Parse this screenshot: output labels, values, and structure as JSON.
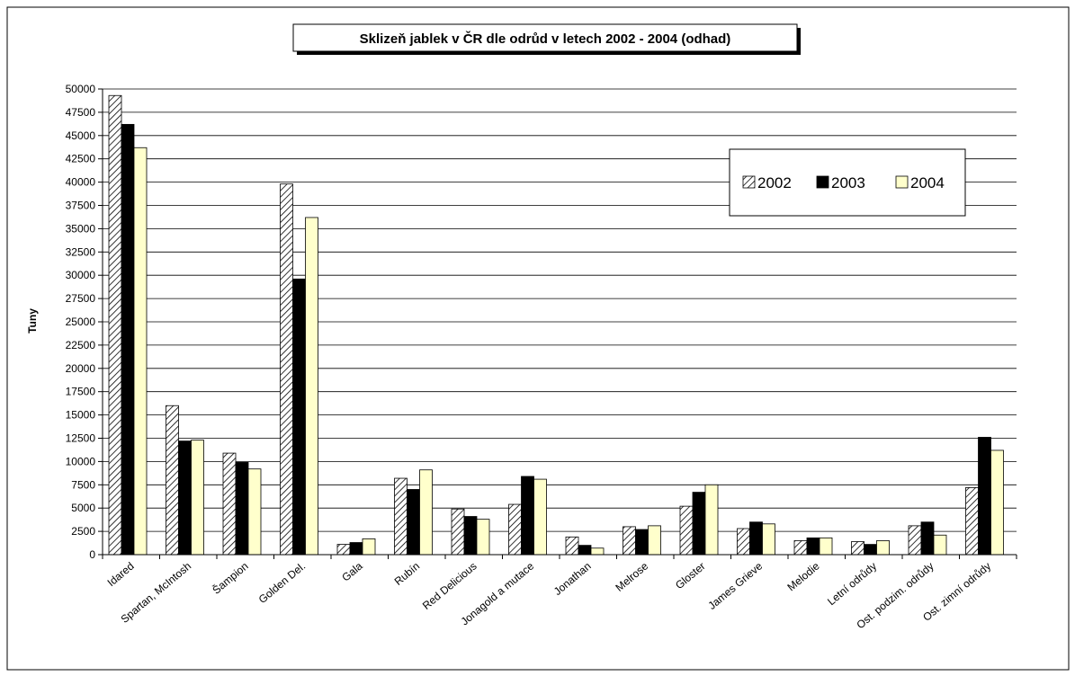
{
  "chart_data": {
    "type": "bar",
    "title": "Sklizeň jablek v ČR dle odrůd v letech 2002 - 2004 (odhad)",
    "ylabel": "Tuny",
    "xlabel": "",
    "ylim": [
      0,
      50000
    ],
    "ytick_step": 2500,
    "grid": true,
    "legend_position": "top-right",
    "categories": [
      "Idared",
      "Spartan, McIntosh",
      "Šampion",
      "Golden Del.",
      "Gala",
      "Rubín",
      "Red Delicious",
      "Jonagold a mutace",
      "Jonathan",
      "Melrose",
      "Gloster",
      "James Grieve",
      "Melodie",
      "Letní odrůdy",
      "Ost. podzim. odrůdy",
      "Ost. zimní odrůdy"
    ],
    "series": [
      {
        "name": "2002",
        "fill": "hatch",
        "values": [
          49300,
          16000,
          10900,
          39800,
          1100,
          8200,
          4900,
          5400,
          1900,
          3000,
          5200,
          2800,
          1500,
          1400,
          3100,
          7200
        ]
      },
      {
        "name": "2003",
        "fill": "#000000",
        "values": [
          46200,
          12200,
          9900,
          29600,
          1300,
          7000,
          4100,
          8400,
          1000,
          2700,
          6700,
          3500,
          1800,
          1100,
          3500,
          12600
        ]
      },
      {
        "name": "2004",
        "fill": "#ffffcc",
        "values": [
          43700,
          12300,
          9200,
          36200,
          1700,
          9100,
          3800,
          8100,
          700,
          3100,
          7500,
          3300,
          1800,
          1500,
          2100,
          11200
        ]
      }
    ]
  }
}
